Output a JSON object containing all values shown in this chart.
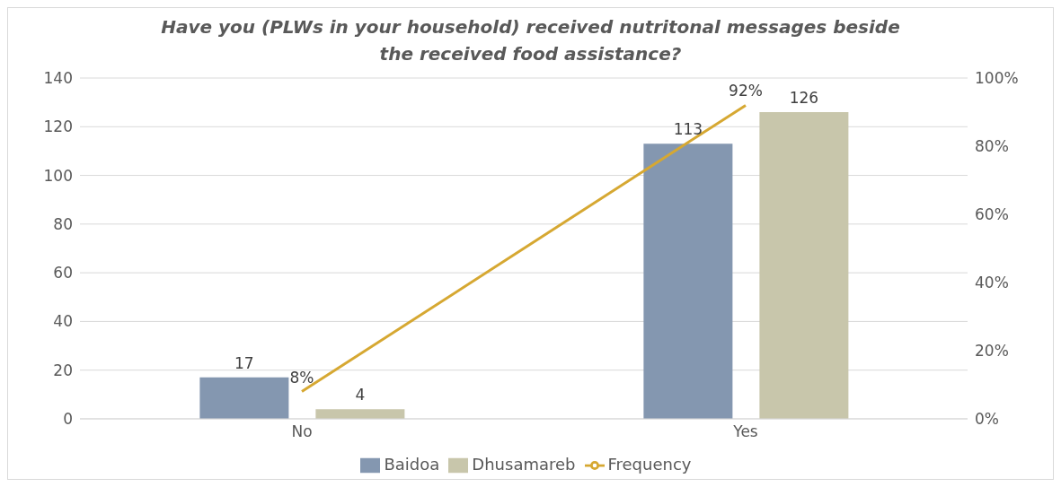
{
  "chart_data": {
    "type": "bar",
    "title": "Have you (PLWs in your household) received nutritonal messages beside the received food assistance?",
    "categories": [
      "No",
      "Yes"
    ],
    "series": [
      {
        "name": "Baidoa",
        "color": "#8497b0",
        "values": [
          17,
          113
        ],
        "value_labels": [
          "17",
          "113"
        ]
      },
      {
        "name": "Dhusamareb",
        "color": "#c8c6ab",
        "values": [
          4,
          126
        ],
        "value_labels": [
          "4",
          "126"
        ]
      },
      {
        "name": "Frequency",
        "type": "line",
        "axis": "y2",
        "color": "#d6a832",
        "values": [
          8,
          92
        ],
        "value_labels": [
          "8%",
          "92%"
        ]
      }
    ],
    "ylim": [
      0,
      140
    ],
    "yticks": [
      0,
      20,
      40,
      60,
      80,
      100,
      120,
      140
    ],
    "y2lim": [
      0,
      100
    ],
    "y2ticks": [
      {
        "value": 0,
        "label": "0%"
      },
      {
        "value": 20,
        "label": "20%"
      },
      {
        "value": 40,
        "label": "40%"
      },
      {
        "value": 60,
        "label": "60%"
      },
      {
        "value": 80,
        "label": "80%"
      },
      {
        "value": 100,
        "label": "100%"
      }
    ],
    "grid": "y",
    "legend": "bottom"
  }
}
